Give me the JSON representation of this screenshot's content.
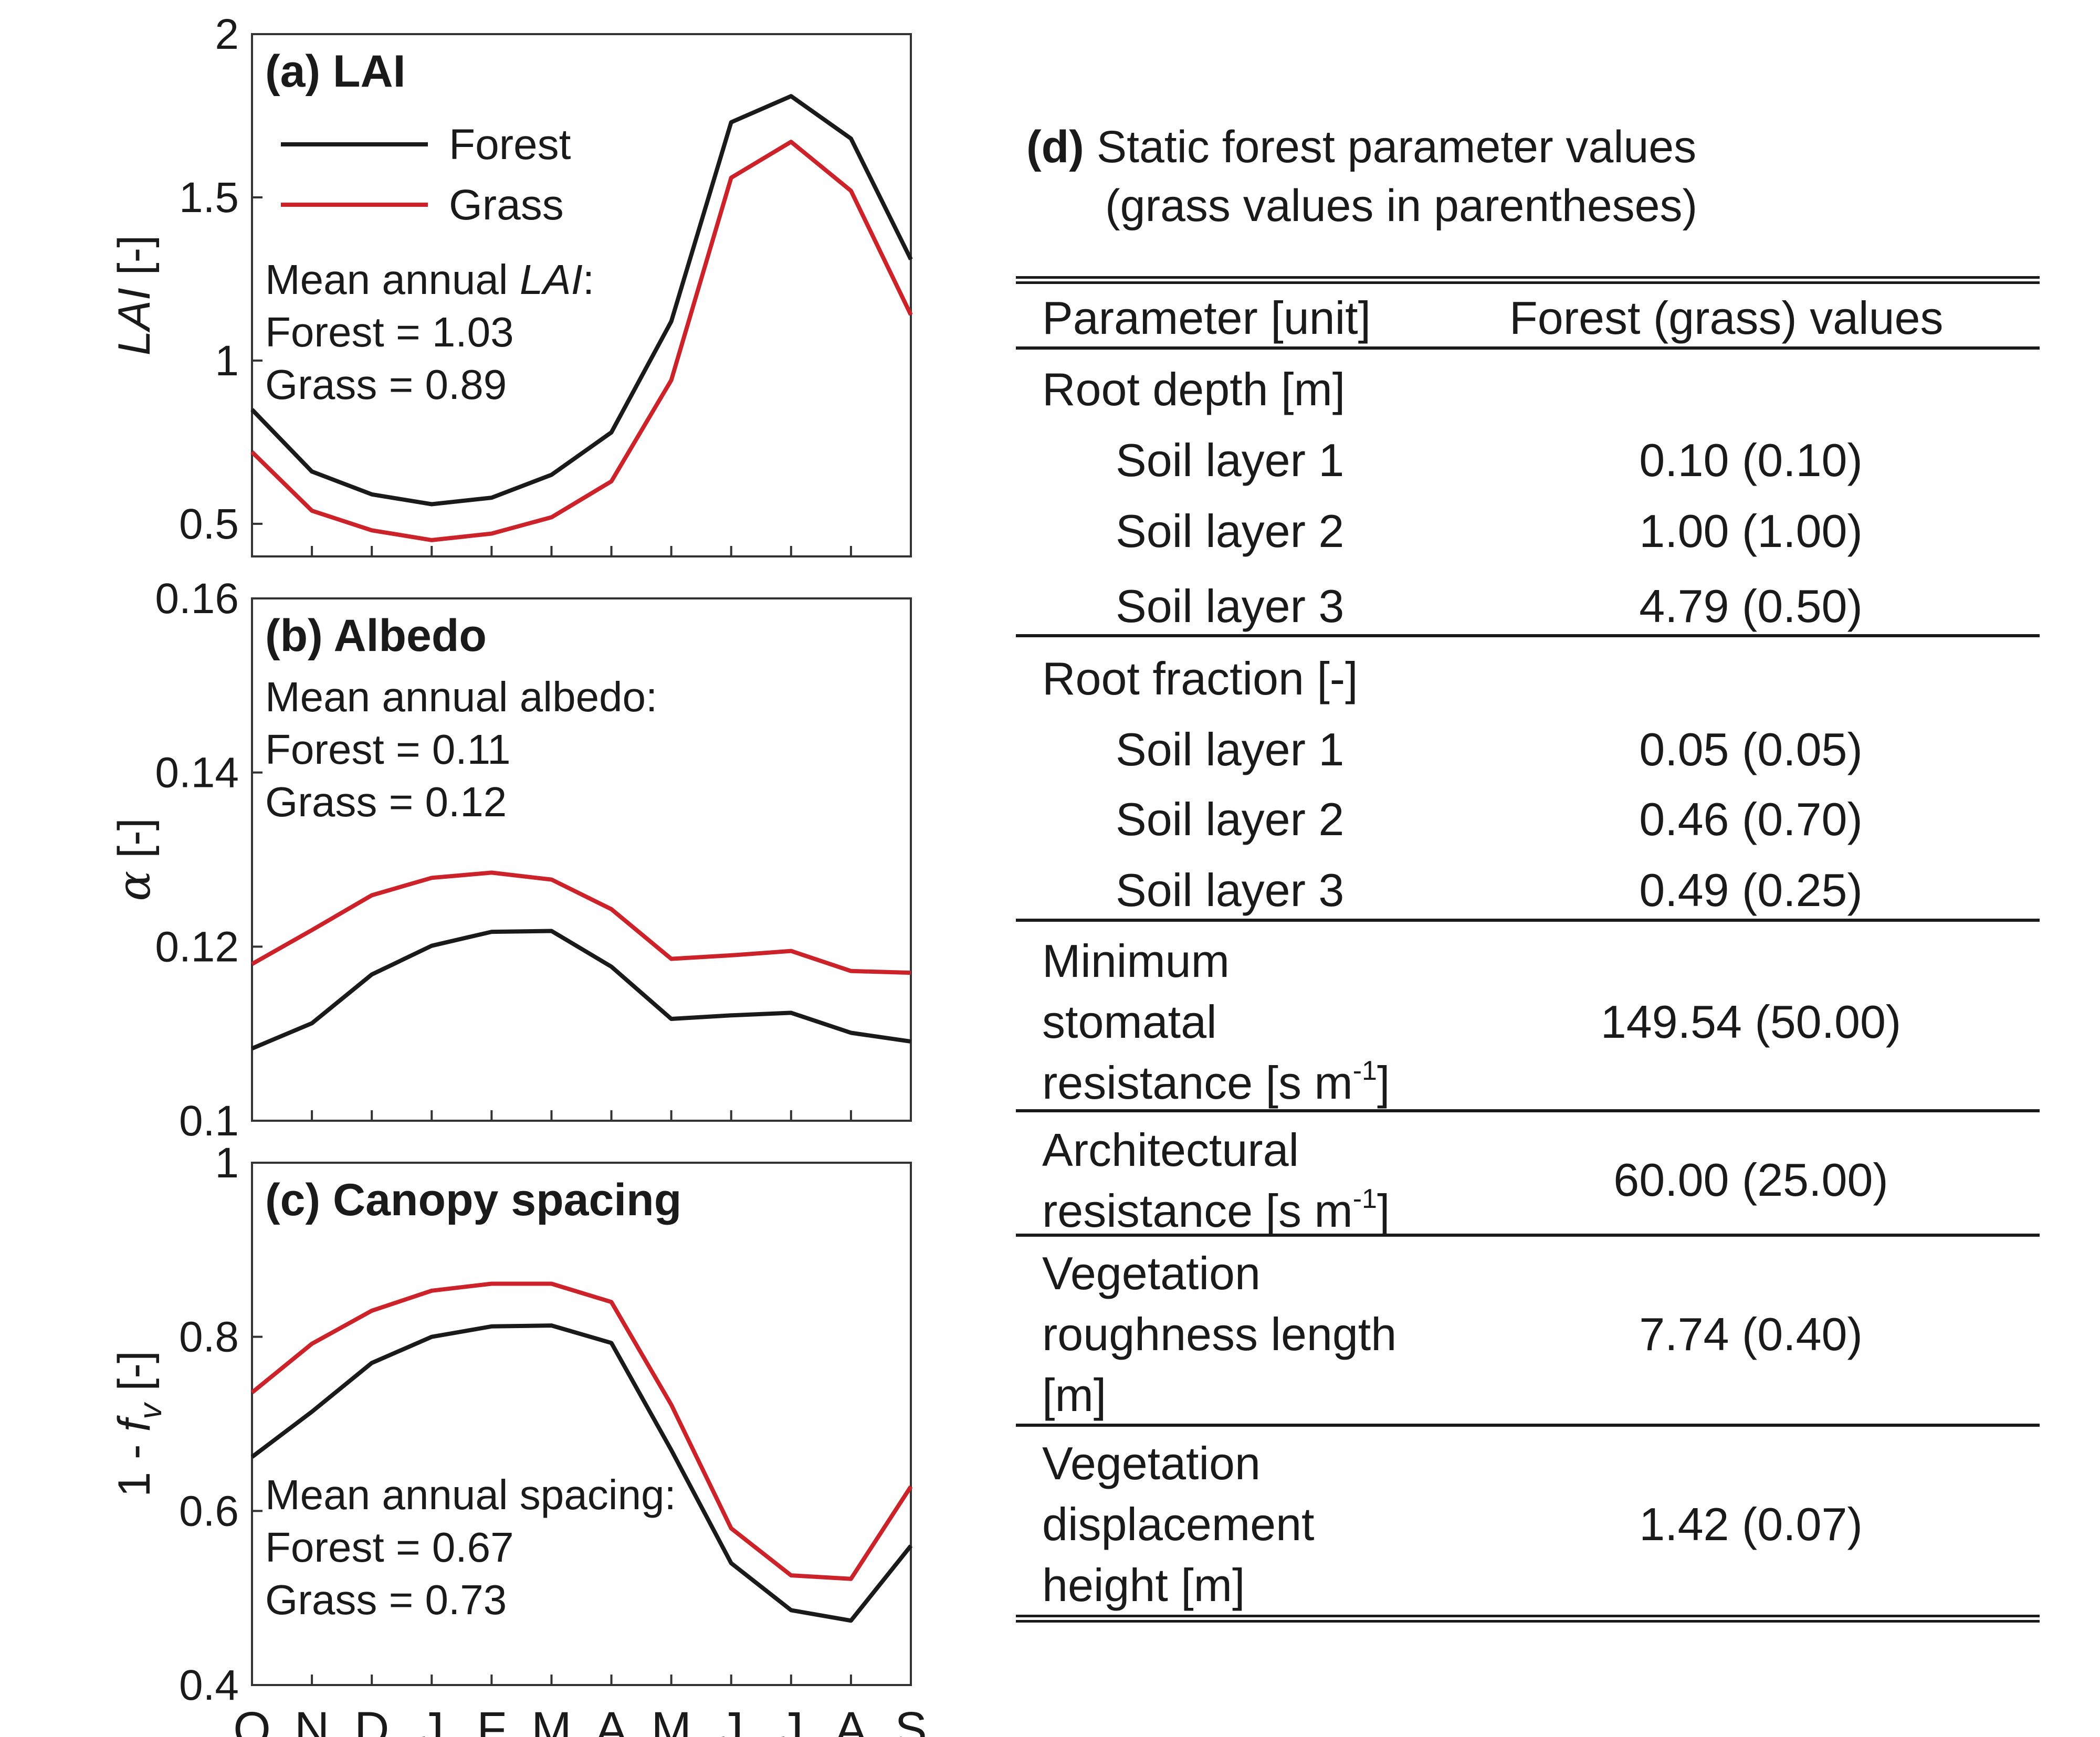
{
  "chart_data": [
    {
      "type": "line",
      "panel_label": "(a) LAI",
      "ylabel": "LAI [-]",
      "ylim": [
        0.4,
        2
      ],
      "yticks": [
        "0.5",
        "1",
        "1.5",
        "2"
      ],
      "categories": [
        "O",
        "N",
        "D",
        "J",
        "F",
        "M",
        "A",
        "M",
        "J",
        "J",
        "A",
        "S"
      ],
      "series": [
        {
          "name": "Forest",
          "color": "#1a1a1a",
          "values": [
            0.85,
            0.66,
            0.59,
            0.56,
            0.58,
            0.65,
            0.78,
            1.12,
            1.73,
            1.81,
            1.68,
            1.31
          ]
        },
        {
          "name": "Grass",
          "color": "#cc2229",
          "values": [
            0.72,
            0.54,
            0.48,
            0.45,
            0.47,
            0.52,
            0.63,
            0.94,
            1.56,
            1.67,
            1.52,
            1.14
          ]
        }
      ],
      "legend": "top-left",
      "annotation": [
        "Mean annual LAI:",
        "Forest = 1.03",
        "Grass = 0.89"
      ]
    },
    {
      "type": "line",
      "panel_label": "(b) Albedo",
      "ylabel": "α [-]",
      "ylim": [
        0.1,
        0.16
      ],
      "yticks": [
        "0.1",
        "0.12",
        "0.14",
        "0.16"
      ],
      "categories": [
        "O",
        "N",
        "D",
        "J",
        "F",
        "M",
        "A",
        "M",
        "J",
        "J",
        "A",
        "S"
      ],
      "series": [
        {
          "name": "Forest",
          "color": "#1a1a1a",
          "values": [
            0.1083,
            0.1112,
            0.1168,
            0.1201,
            0.1217,
            0.1218,
            0.1177,
            0.1117,
            0.1121,
            0.1124,
            0.1101,
            0.1091
          ]
        },
        {
          "name": "Grass",
          "color": "#cc2229",
          "values": [
            0.118,
            0.1219,
            0.1259,
            0.1279,
            0.1285,
            0.1277,
            0.1243,
            0.1186,
            0.119,
            0.1195,
            0.1172,
            0.117
          ]
        }
      ],
      "annotation": [
        "Mean annual albedo:",
        "Forest = 0.11",
        "Grass = 0.12"
      ]
    },
    {
      "type": "line",
      "panel_label": "(c) Canopy spacing",
      "ylabel": "1 - f_v [-]",
      "ylim": [
        0.4,
        1
      ],
      "yticks": [
        "0.4",
        "0.6",
        "0.8",
        "1"
      ],
      "categories": [
        "O",
        "N",
        "D",
        "J",
        "F",
        "M",
        "A",
        "M",
        "J",
        "J",
        "A",
        "S"
      ],
      "series": [
        {
          "name": "Forest",
          "color": "#1a1a1a",
          "values": [
            0.662,
            0.714,
            0.77,
            0.8,
            0.812,
            0.813,
            0.793,
            0.67,
            0.54,
            0.486,
            0.474,
            0.56
          ]
        },
        {
          "name": "Grass",
          "color": "#cc2229",
          "values": [
            0.736,
            0.792,
            0.83,
            0.853,
            0.861,
            0.861,
            0.84,
            0.722,
            0.58,
            0.526,
            0.522,
            0.628
          ]
        }
      ],
      "annotation": [
        "Mean annual spacing:",
        "Forest = 0.67",
        "Grass = 0.73"
      ]
    }
  ],
  "table": {
    "label": "(d)",
    "title_line1": "Static forest parameter values",
    "title_line2": "(grass values in parentheses)",
    "header": [
      "Parameter [unit]",
      "Forest (grass) values"
    ],
    "root_depth_label": "Root depth [m]",
    "root_depth_rows": [
      {
        "layer": "Soil layer 1",
        "value": "0.10 (0.10)"
      },
      {
        "layer": "Soil layer 2",
        "value": "1.00 (1.00)"
      },
      {
        "layer": "Soil layer 3",
        "value": "4.79 (0.50)"
      }
    ],
    "root_fraction_label": "Root fraction [-]",
    "root_fraction_rows": [
      {
        "layer": "Soil layer 1",
        "value": "0.05 (0.05)"
      },
      {
        "layer": "Soil layer 2",
        "value": "0.46 (0.70)"
      },
      {
        "layer": "Soil layer 3",
        "value": "0.49 (0.25)"
      }
    ],
    "min_stomatal": {
      "line1": "Minimum",
      "line2": "stomatal",
      "line3": "resistance [s m",
      "sup": "-1",
      "close": "]",
      "value": "149.54 (50.00)"
    },
    "architectural": {
      "line1": "Architectural",
      "line2": "resistance [s m",
      "sup": "-1",
      "close": "]",
      "value": "60.00 (25.00)"
    },
    "roughness": {
      "line1": "Vegetation",
      "line2": "roughness length",
      "line3": "[m]",
      "value": "7.74 (0.40)"
    },
    "displacement": {
      "line1": "Vegetation",
      "line2": "displacement",
      "line3": "height [m]",
      "value": "1.42 (0.07)"
    }
  }
}
